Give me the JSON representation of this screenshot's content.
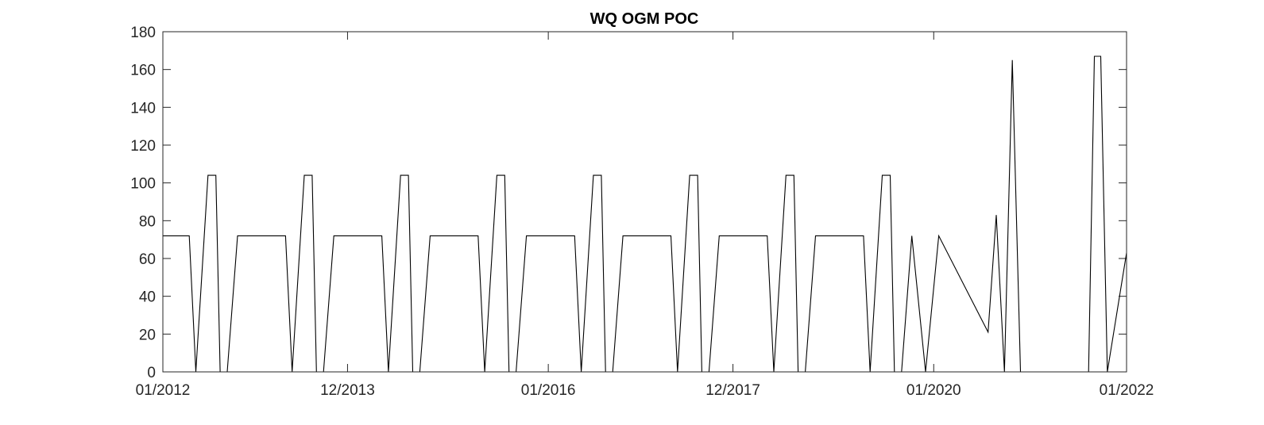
{
  "chart_data": {
    "type": "line",
    "title": "WQ OGM POC",
    "xlabel": "",
    "ylabel": "",
    "x_tick_labels": [
      "01/2012",
      "12/2013",
      "01/2016",
      "12/2017",
      "01/2020",
      "01/2022"
    ],
    "x_ticks": [
      "2012-01-01",
      "2013-12-01",
      "2016-01-01",
      "2017-12-01",
      "2020-01-01",
      "2022-01-01"
    ],
    "xlim": [
      "2012-01-01",
      "2022-01-01"
    ],
    "y_tick_labels": [
      "0",
      "20",
      "40",
      "60",
      "80",
      "100",
      "120",
      "140",
      "160",
      "180"
    ],
    "y_ticks": [
      0,
      20,
      40,
      60,
      80,
      100,
      120,
      140,
      160,
      180
    ],
    "ylim": [
      0,
      180
    ],
    "grid": false,
    "line_color": "#000000",
    "series": [
      {
        "x": [
          "2012-01-01",
          "2012-04-10",
          "2012-05-05",
          "2012-06-20",
          "2012-07-20",
          "2012-08-05",
          "2012-09-01",
          "2012-10-10",
          "2013-01-01",
          "2013-04-10",
          "2013-05-05",
          "2013-06-20",
          "2013-07-20",
          "2013-08-05",
          "2013-09-01",
          "2013-10-10",
          "2014-01-01",
          "2014-04-10",
          "2014-05-05",
          "2014-06-20",
          "2014-07-20",
          "2014-08-05",
          "2014-09-01",
          "2014-10-10",
          "2015-01-01",
          "2015-04-10",
          "2015-05-05",
          "2015-06-20",
          "2015-07-20",
          "2015-08-05",
          "2015-09-01",
          "2015-10-10",
          "2016-01-01",
          "2016-04-10",
          "2016-05-05",
          "2016-06-20",
          "2016-07-20",
          "2016-08-05",
          "2016-09-01",
          "2016-10-10",
          "2017-01-01",
          "2017-04-10",
          "2017-05-05",
          "2017-06-20",
          "2017-07-20",
          "2017-08-05",
          "2017-09-01",
          "2017-10-10",
          "2018-01-01",
          "2018-04-10",
          "2018-05-05",
          "2018-06-20",
          "2018-07-20",
          "2018-08-05",
          "2018-09-01",
          "2018-10-10",
          "2019-01-01",
          "2019-04-10",
          "2019-05-05",
          "2019-06-20",
          "2019-07-20",
          "2019-08-05",
          "2019-09-01",
          "2019-10-10",
          "2019-12-01",
          "2020-01-20",
          "2020-07-25",
          "2020-08-25",
          "2020-09-25",
          "2020-10-25",
          "2020-11-25",
          "2021-08-10",
          "2021-09-01",
          "2021-09-25",
          "2021-10-20",
          "2022-01-01"
        ],
        "y": [
          72,
          72,
          0,
          104,
          104,
          0,
          0,
          72,
          72,
          72,
          0,
          104,
          104,
          0,
          0,
          72,
          72,
          72,
          0,
          104,
          104,
          0,
          0,
          72,
          72,
          72,
          0,
          104,
          104,
          0,
          0,
          72,
          72,
          72,
          0,
          104,
          104,
          0,
          0,
          72,
          72,
          72,
          0,
          104,
          104,
          0,
          0,
          72,
          72,
          72,
          0,
          104,
          104,
          0,
          0,
          72,
          72,
          72,
          0,
          104,
          104,
          0,
          0,
          72,
          0,
          72,
          21,
          83,
          0,
          165,
          0,
          0,
          167,
          167,
          0,
          63
        ]
      }
    ]
  }
}
